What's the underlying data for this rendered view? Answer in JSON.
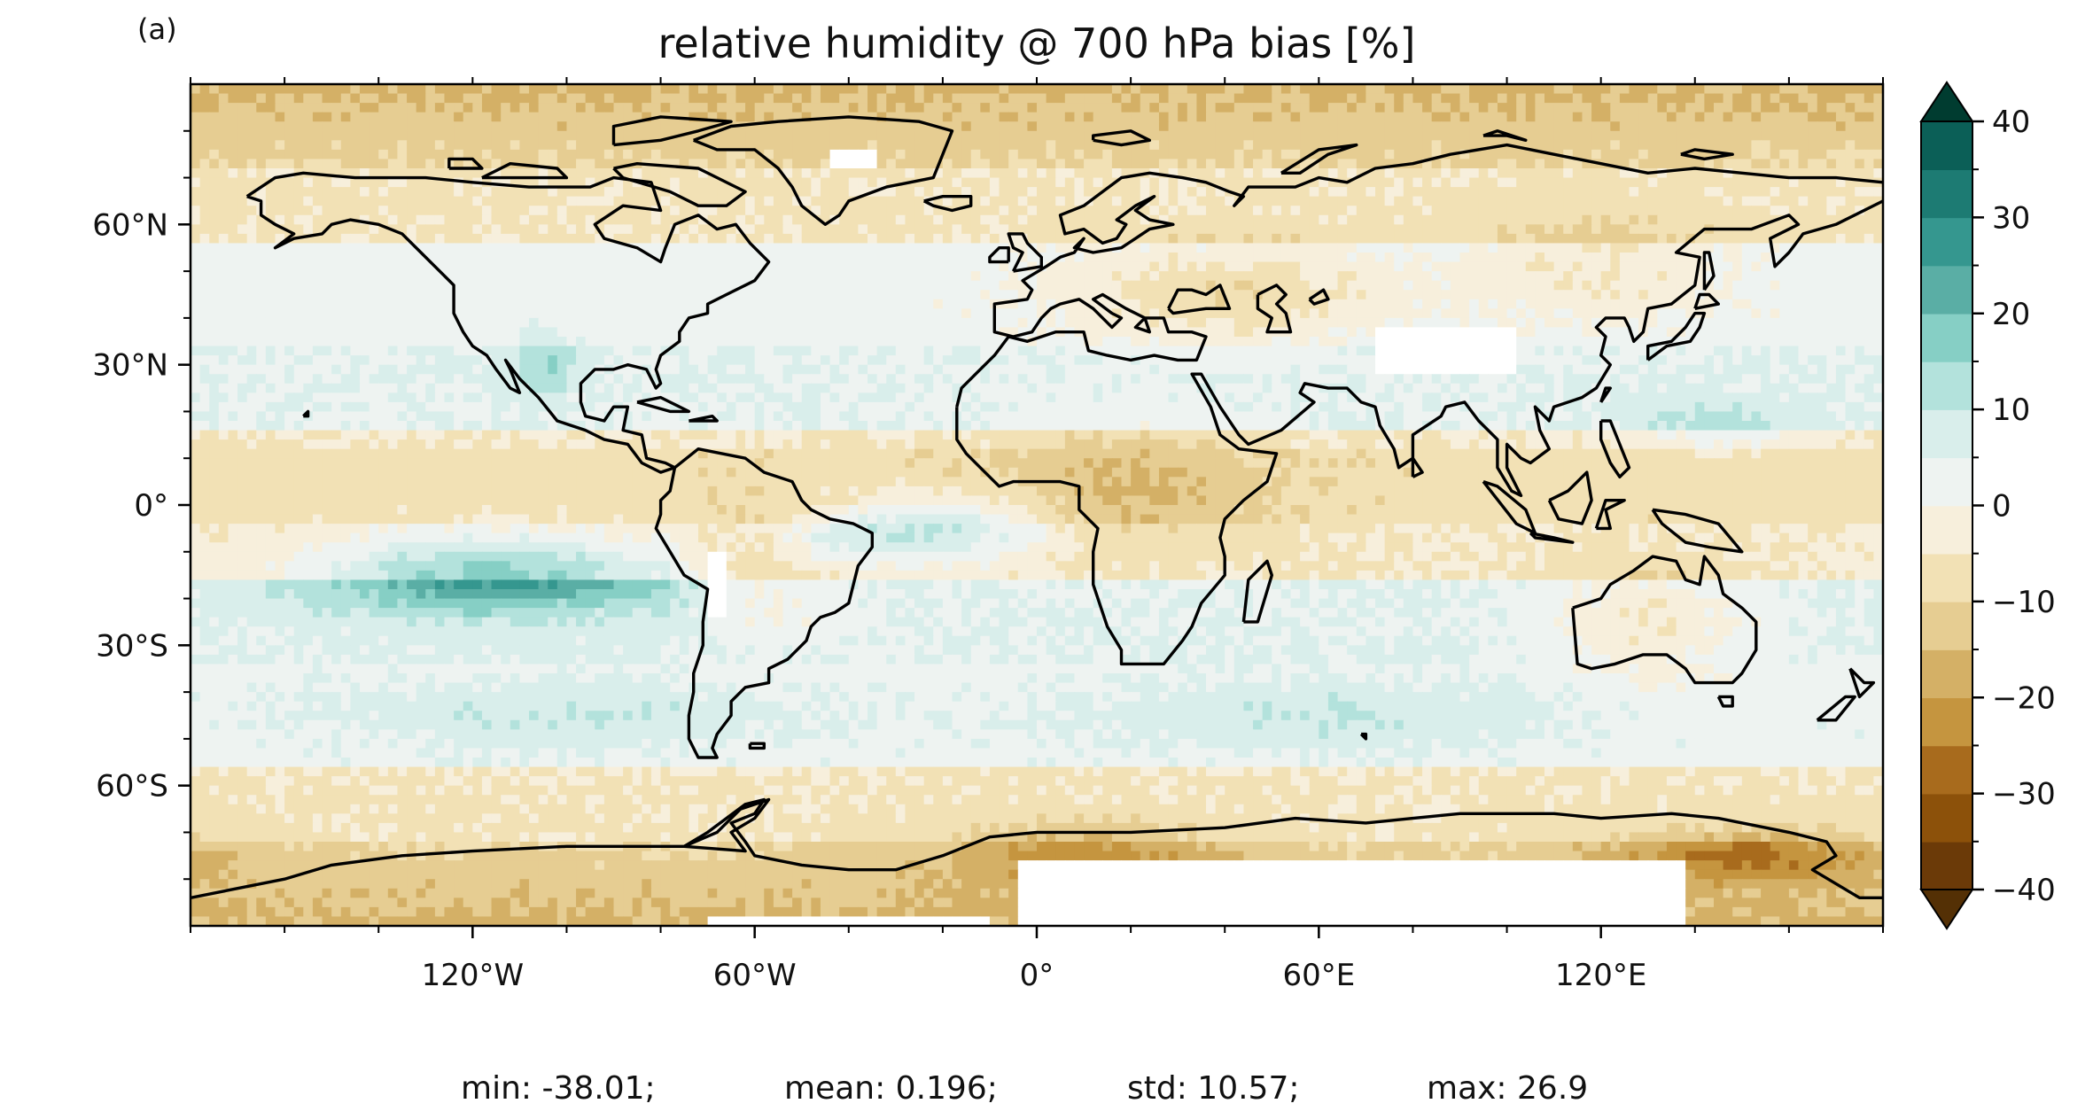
{
  "panel_label": "(a)",
  "title": "relative humidity @ 700 hPa bias [%]",
  "map": {
    "projection": "PlateCarree",
    "extent_lon": [
      -180,
      180
    ],
    "extent_lat": [
      -90,
      90
    ],
    "x_ticks": [
      {
        "lon": -120,
        "label": "120°W"
      },
      {
        "lon": -60,
        "label": "60°W"
      },
      {
        "lon": 0,
        "label": "0°"
      },
      {
        "lon": 60,
        "label": "60°E"
      },
      {
        "lon": 120,
        "label": "120°E"
      }
    ],
    "y_ticks": [
      {
        "lat": 60,
        "label": "60°N"
      },
      {
        "lat": 30,
        "label": "30°N"
      },
      {
        "lat": 0,
        "label": "0°"
      },
      {
        "lat": -30,
        "label": "30°S"
      },
      {
        "lat": -60,
        "label": "60°S"
      }
    ],
    "coastlines": true,
    "field": "relative humidity bias at 700 hPa",
    "missing_regions": [
      "Antarctic interior",
      "Tibetan Plateau",
      "Greenland summit",
      "Andes"
    ]
  },
  "colorbar": {
    "colormap": "BrBG",
    "extend": "both",
    "levels": [
      -40,
      -35,
      -30,
      -25,
      -20,
      -15,
      -10,
      -5,
      0,
      5,
      10,
      15,
      20,
      25,
      30,
      35,
      40
    ],
    "colors": [
      "#6b3a08",
      "#8c510a",
      "#a86b1d",
      "#c5953f",
      "#d4b066",
      "#e6cd92",
      "#f2e1b5",
      "#f7efdc",
      "#eef3f1",
      "#d9eeeb",
      "#b3e2dc",
      "#86cfc5",
      "#5aaea5",
      "#35978f",
      "#1d7b73",
      "#0b5f57"
    ],
    "extend_low_color": "#543005",
    "extend_high_color": "#003c30",
    "ticks": [
      {
        "value": 40,
        "label": "40"
      },
      {
        "value": 30,
        "label": "30"
      },
      {
        "value": 20,
        "label": "20"
      },
      {
        "value": 10,
        "label": "10"
      },
      {
        "value": 0,
        "label": "0"
      },
      {
        "value": -10,
        "label": "−10"
      },
      {
        "value": -20,
        "label": "−20"
      },
      {
        "value": -30,
        "label": "−30"
      },
      {
        "value": -40,
        "label": "−40"
      }
    ]
  },
  "stats": {
    "min": "min: -38.01;",
    "mean": "mean: 0.196;",
    "std": "std: 10.57;",
    "max": "max: 26.9"
  }
}
